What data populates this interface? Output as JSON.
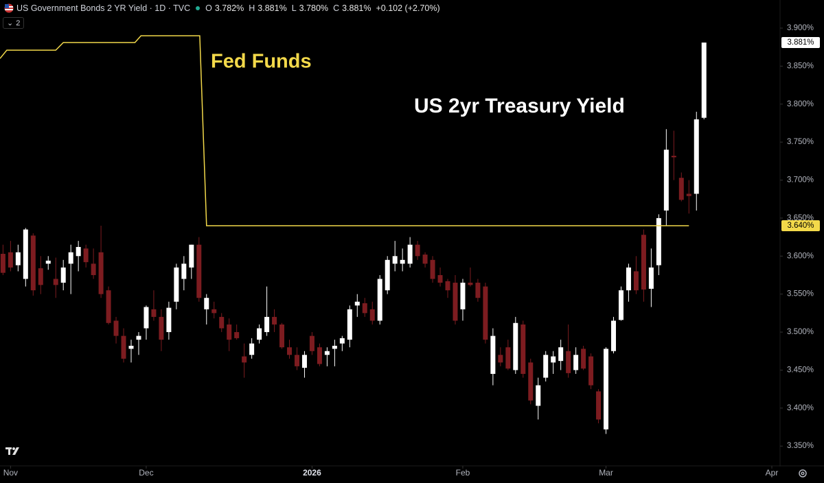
{
  "header": {
    "symbol": "US Government Bonds 2 YR Yield · 1D · TVC",
    "ohlc": [
      {
        "key": "O",
        "value": "3.782%"
      },
      {
        "key": "H",
        "value": "3.881%"
      },
      {
        "key": "L",
        "value": "3.780%"
      },
      {
        "key": "C",
        "value": "3.881%"
      }
    ],
    "change": "+0.102 (+2.70%)",
    "interval_chip": "2"
  },
  "chart_data": {
    "type": "candlestick",
    "name": "US 2yr Treasury Yield",
    "up_color": "#ffffff",
    "down_color": "#7d1c20",
    "open": [
      3.603,
      3.605,
      3.588,
      3.57,
      3.627,
      3.584,
      3.59,
      3.57,
      3.565,
      3.59,
      3.6,
      3.61,
      3.59,
      3.605,
      3.555,
      3.515,
      3.495,
      3.478,
      3.49,
      3.505,
      3.53,
      3.52,
      3.5,
      3.54,
      3.57,
      3.585,
      3.615,
      3.53,
      3.53,
      3.52,
      3.51,
      3.5,
      3.468,
      3.47,
      3.49,
      3.5,
      3.52,
      3.51,
      3.48,
      3.47,
      3.453,
      3.495,
      3.48,
      3.47,
      3.478,
      3.485,
      3.49,
      3.535,
      3.538,
      3.53,
      3.515,
      3.555,
      3.59,
      3.59,
      3.59,
      3.615,
      3.602,
      3.595,
      3.575,
      3.567,
      3.565,
      3.53,
      3.565,
      3.565,
      3.56,
      3.445,
      3.47,
      3.48,
      3.45,
      3.51,
      3.46,
      3.403,
      3.44,
      3.46,
      3.462,
      3.475,
      3.45,
      3.478,
      3.468,
      3.422,
      3.372,
      3.475,
      3.516,
      3.555,
      3.58,
      3.628,
      3.557,
      3.588,
      3.66,
      3.732,
      3.703,
      3.682,
      3.682,
      3.782
    ],
    "high": [
      3.615,
      3.62,
      3.615,
      3.637,
      3.63,
      3.6,
      3.6,
      3.598,
      3.595,
      3.615,
      3.62,
      3.615,
      3.61,
      3.64,
      3.56,
      3.52,
      3.505,
      3.49,
      3.5,
      3.535,
      3.555,
      3.53,
      3.54,
      3.59,
      3.6,
      3.615,
      3.625,
      3.55,
      3.54,
      3.525,
      3.518,
      3.51,
      3.485,
      3.492,
      3.51,
      3.56,
      3.53,
      3.512,
      3.49,
      3.48,
      3.475,
      3.5,
      3.485,
      3.48,
      3.49,
      3.495,
      3.535,
      3.55,
      3.545,
      3.54,
      3.575,
      3.6,
      3.62,
      3.61,
      3.625,
      3.62,
      3.605,
      3.6,
      3.585,
      3.57,
      3.575,
      3.57,
      3.585,
      3.57,
      3.565,
      3.505,
      3.48,
      3.49,
      3.52,
      3.515,
      3.465,
      3.44,
      3.475,
      3.475,
      3.49,
      3.51,
      3.48,
      3.482,
      3.472,
      3.425,
      3.48,
      3.52,
      3.56,
      3.59,
      3.6,
      3.635,
      3.61,
      3.655,
      3.767,
      3.765,
      3.71,
      3.7,
      3.79,
      3.881
    ],
    "low": [
      3.575,
      3.58,
      3.58,
      3.56,
      3.548,
      3.55,
      3.582,
      3.545,
      3.555,
      3.55,
      3.58,
      3.585,
      3.57,
      3.545,
      3.51,
      3.485,
      3.46,
      3.46,
      3.47,
      3.49,
      3.515,
      3.475,
      3.49,
      3.53,
      3.555,
      3.57,
      3.54,
      3.51,
      3.518,
      3.5,
      3.475,
      3.49,
      3.44,
      3.465,
      3.485,
      3.495,
      3.5,
      3.478,
      3.465,
      3.45,
      3.44,
      3.47,
      3.455,
      3.455,
      3.455,
      3.475,
      3.48,
      3.52,
      3.52,
      3.51,
      3.51,
      3.55,
      3.58,
      3.58,
      3.585,
      3.595,
      3.585,
      3.565,
      3.56,
      3.545,
      3.51,
      3.515,
      3.56,
      3.54,
      3.485,
      3.43,
      3.455,
      3.45,
      3.445,
      3.44,
      3.405,
      3.385,
      3.435,
      3.445,
      3.45,
      3.44,
      3.445,
      3.45,
      3.425,
      3.38,
      3.366,
      3.472,
      3.515,
      3.54,
      3.55,
      3.54,
      3.533,
      3.575,
      3.64,
      3.7,
      3.672,
      3.656,
      3.66,
      3.78
    ],
    "close": [
      3.578,
      3.585,
      3.605,
      3.635,
      3.555,
      3.562,
      3.594,
      3.562,
      3.585,
      3.605,
      3.612,
      3.592,
      3.575,
      3.55,
      3.512,
      3.495,
      3.465,
      3.482,
      3.495,
      3.533,
      3.52,
      3.49,
      3.532,
      3.585,
      3.59,
      3.615,
      3.545,
      3.545,
      3.525,
      3.505,
      3.49,
      3.492,
      3.46,
      3.485,
      3.505,
      3.52,
      3.51,
      3.48,
      3.47,
      3.455,
      3.47,
      3.475,
      3.458,
      3.475,
      3.482,
      3.492,
      3.53,
      3.54,
      3.525,
      3.515,
      3.57,
      3.595,
      3.6,
      3.595,
      3.615,
      3.6,
      3.59,
      3.57,
      3.565,
      3.555,
      3.515,
      3.565,
      3.562,
      3.545,
      3.49,
      3.495,
      3.46,
      3.452,
      3.512,
      3.445,
      3.41,
      3.43,
      3.47,
      3.468,
      3.48,
      3.446,
      3.47,
      3.452,
      3.43,
      3.385,
      3.478,
      3.515,
      3.555,
      3.585,
      3.555,
      3.556,
      3.585,
      3.65,
      3.74,
      3.73,
      3.674,
      3.679,
      3.78,
      3.881
    ],
    "line": {
      "name": "Fed Funds",
      "color": "#f3d94a",
      "x": [
        -0.4,
        0.5,
        7,
        8,
        17.5,
        18.3,
        26.1,
        27,
        91
      ],
      "values": [
        3.86,
        3.871,
        3.871,
        3.881,
        3.881,
        3.89,
        3.89,
        3.64,
        3.64
      ]
    },
    "xlim": [
      -0.4,
      103
    ],
    "xticks": [
      {
        "value": 1,
        "label": "Nov"
      },
      {
        "value": 19,
        "label": "Dec"
      },
      {
        "value": 41,
        "label": "2026"
      },
      {
        "value": 61,
        "label": "Feb"
      },
      {
        "value": 80,
        "label": "Mar"
      },
      {
        "value": 102,
        "label": "Apr"
      }
    ],
    "ylim": [
      3.324,
      3.937
    ],
    "yticks": [
      {
        "value": 3.35,
        "label": "3.350%"
      },
      {
        "value": 3.4,
        "label": "3.400%"
      },
      {
        "value": 3.45,
        "label": "3.450%"
      },
      {
        "value": 3.5,
        "label": "3.500%"
      },
      {
        "value": 3.55,
        "label": "3.550%"
      },
      {
        "value": 3.6,
        "label": "3.600%"
      },
      {
        "value": 3.65,
        "label": "3.650%"
      },
      {
        "value": 3.7,
        "label": "3.700%"
      },
      {
        "value": 3.75,
        "label": "3.750%"
      },
      {
        "value": 3.8,
        "label": "3.800%"
      },
      {
        "value": 3.85,
        "label": "3.850%"
      },
      {
        "value": 3.9,
        "label": "3.900%"
      }
    ],
    "price_labels": [
      {
        "value": 3.881,
        "label": "3.881%",
        "color": "#ffffff"
      },
      {
        "value": 3.64,
        "label": "3.640%",
        "color": "#f3d94a"
      }
    ]
  }
}
